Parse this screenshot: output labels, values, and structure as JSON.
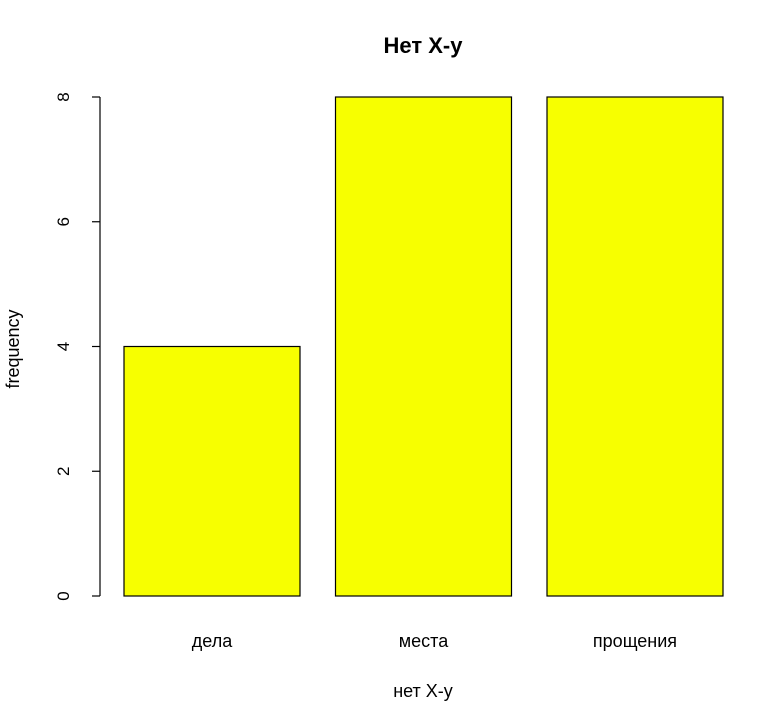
{
  "chart_data": {
    "type": "bar",
    "title": "Нет X-у",
    "xlabel": "нет X-у",
    "ylabel": "frequency",
    "categories": [
      "дела",
      "места",
      "прощения"
    ],
    "values": [
      4,
      8,
      8
    ],
    "ylim": [
      0,
      8
    ],
    "yticks": [
      0,
      2,
      4,
      6,
      8
    ],
    "bar_color": "#f7ff00",
    "bar_border": "#000000",
    "grid": false,
    "legend": "none"
  }
}
